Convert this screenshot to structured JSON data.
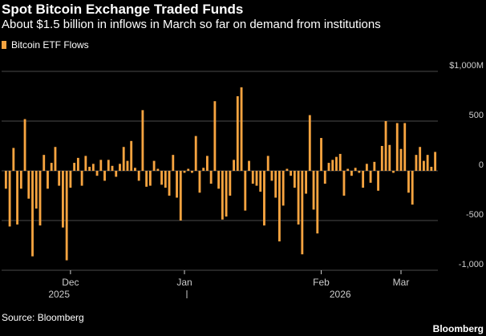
{
  "chart_data": {
    "type": "bar",
    "title": "Spot Bitcoin Exchange Traded Funds",
    "subtitle": "About $1.5 billion in inflows in March so far on demand from institutions",
    "series": [
      {
        "name": "Bitcoin ETF Flows",
        "color": "#f7a440",
        "values": [
          -180,
          -560,
          230,
          -540,
          -180,
          520,
          -280,
          -860,
          -380,
          -550,
          160,
          -180,
          80,
          240,
          -150,
          -570,
          -900,
          -170,
          80,
          130,
          -150,
          150,
          40,
          70,
          -50,
          110,
          -100,
          110,
          50,
          -60,
          70,
          240,
          100,
          300,
          30,
          -100,
          610,
          -160,
          -150,
          100,
          20,
          -140,
          -170,
          -250,
          160,
          -270,
          -500,
          -20,
          20,
          -20,
          350,
          -220,
          30,
          150,
          -130,
          700,
          -180,
          -490,
          -460,
          -250,
          110,
          750,
          840,
          -400,
          100,
          -130,
          -150,
          -210,
          -550,
          150,
          -100,
          -270,
          -710,
          -350,
          20,
          -50,
          -170,
          -540,
          -840,
          -230,
          560,
          -390,
          -630,
          330,
          -130,
          80,
          110,
          140,
          170,
          -250,
          20,
          -50,
          30,
          -20,
          -170,
          70,
          -120,
          90,
          -200,
          250,
          500,
          260,
          -20,
          480,
          220,
          480,
          -220,
          -340,
          160,
          240,
          100,
          160,
          40,
          190
        ]
      }
    ],
    "x_ticks": [
      {
        "label": "Dec",
        "index": 17
      },
      {
        "label": "Jan",
        "index": 47
      },
      {
        "label": "Feb",
        "index": 83
      },
      {
        "label": "Mar",
        "index": 104
      }
    ],
    "year_labels": [
      {
        "label": "2025",
        "index": 14
      },
      {
        "label": "2026",
        "index": 88
      }
    ],
    "year_divider_index": 47,
    "y_ticks": [
      {
        "value": 1000,
        "label": "$1,000M"
      },
      {
        "value": 500,
        "label": "500"
      },
      {
        "value": 0,
        "label": "0"
      },
      {
        "value": -500,
        "label": "-500"
      },
      {
        "value": -1000,
        "label": "-1,000"
      }
    ],
    "ylim": [
      -1000,
      1000
    ],
    "grid": true,
    "legend_position": "top-left",
    "source": "Source: Bloomberg",
    "logo": "Bloomberg"
  },
  "colors": {
    "background": "#000000",
    "bar": "#f7a440",
    "grid": "#4a4a4a",
    "text": "#ffffff",
    "axis_text": "#cccccc"
  }
}
